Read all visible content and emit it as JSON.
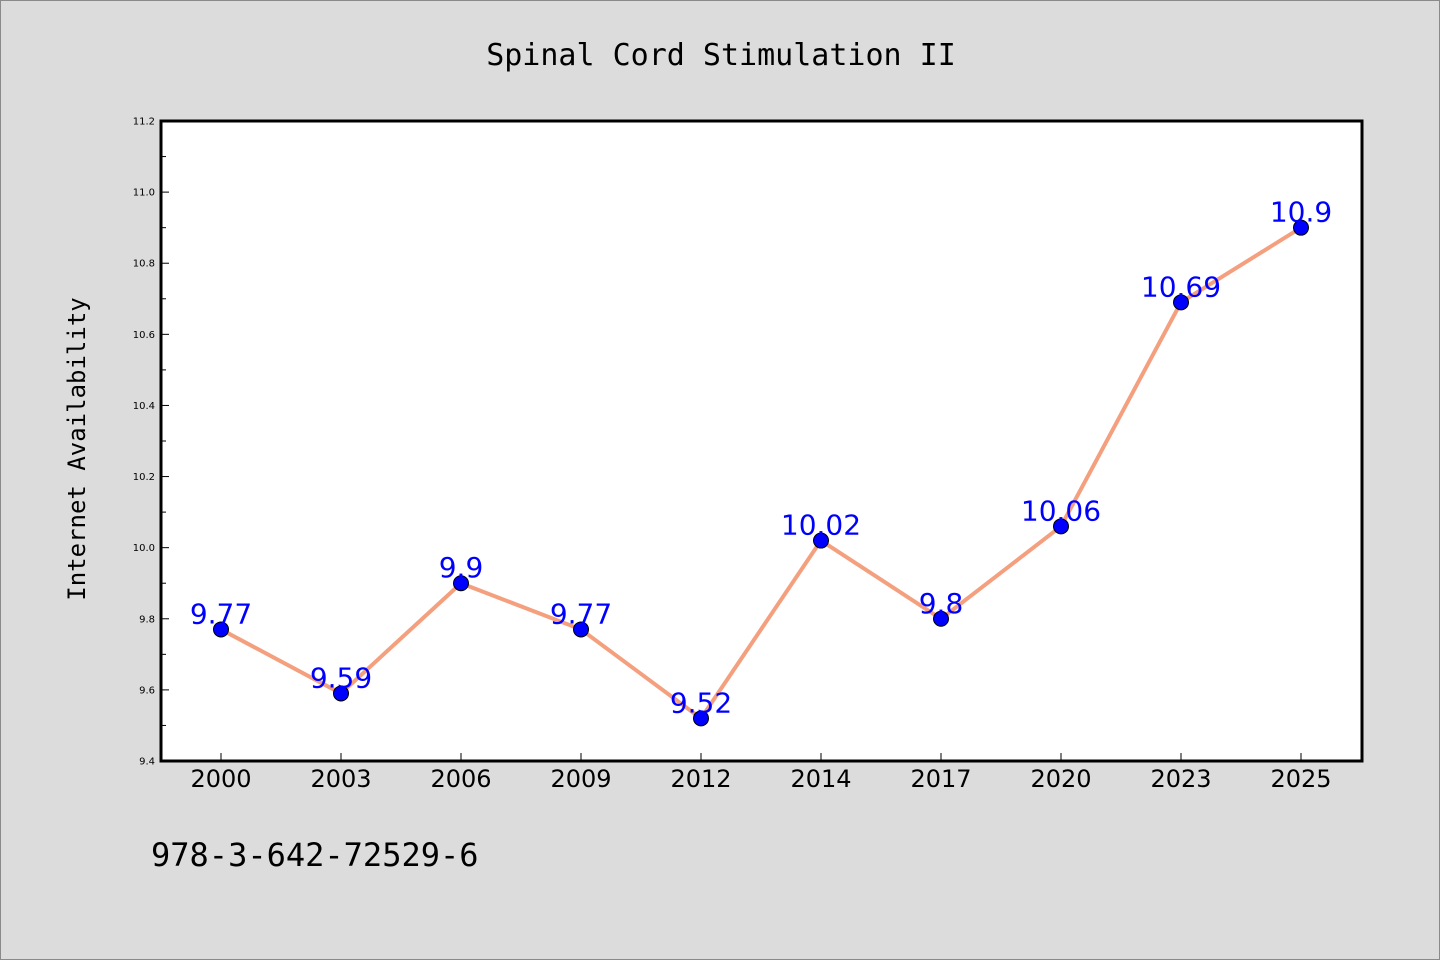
{
  "chart_data": {
    "type": "line",
    "title": "Spinal Cord Stimulation II",
    "xlabel": "",
    "ylabel": "Internet Availability",
    "categories": [
      "2000",
      "2003",
      "2006",
      "2009",
      "2012",
      "2014",
      "2017",
      "2020",
      "2023",
      "2025"
    ],
    "series": [
      {
        "values": [
          9.77,
          9.59,
          9.9,
          9.77,
          9.52,
          10.02,
          9.8,
          10.06,
          10.69,
          10.9
        ],
        "labels": [
          "9.77",
          "9.59",
          "9.9",
          "9.77",
          "9.52",
          "10.02",
          "9.8",
          "10.06",
          "10.69",
          "10.9"
        ],
        "line_color": "#f4a07e",
        "marker_color": "#0000ff",
        "label_color": "#0000ff"
      }
    ],
    "ylim": [
      9.4,
      11.2
    ],
    "yticks": [
      "9.4",
      "9.6",
      "9.8",
      "10.0",
      "10.2",
      "10.4",
      "10.6",
      "10.8",
      "11.0",
      "11.2"
    ],
    "grid": false,
    "legend": "none"
  },
  "footer": {
    "isbn": "978-3-642-72529-6"
  }
}
